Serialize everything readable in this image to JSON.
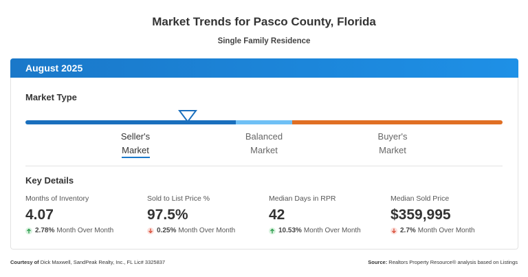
{
  "header": {
    "title": "Market Trends for Pasco County, Florida",
    "subtitle": "Single Family Residence"
  },
  "card": {
    "period": "August 2025",
    "market_type": {
      "heading": "Market Type",
      "options": [
        {
          "line1": "Seller's",
          "line2": "Market"
        },
        {
          "line1": "Balanced",
          "line2": "Market"
        },
        {
          "line1": "Buyer's",
          "line2": "Market"
        }
      ]
    },
    "key_details": {
      "heading": "Key Details",
      "metrics": [
        {
          "label": "Months of Inventory",
          "value": "4.07",
          "change": "2.78%",
          "change_label": "Month Over Month"
        },
        {
          "label": "Sold to List Price %",
          "value": "97.5%",
          "change": "0.25%",
          "change_label": "Month Over Month"
        },
        {
          "label": "Median Days in RPR",
          "value": "42",
          "change": "10.53%",
          "change_label": "Month Over Month"
        },
        {
          "label": "Median Sold Price",
          "value": "$359,995",
          "change": "2.7%",
          "change_label": "Month Over Month"
        }
      ]
    }
  },
  "footer": {
    "courtesy_label": "Courtesy of",
    "courtesy": "Dick Maxwell, SandPeak Realty, Inc., FL Lic# 3325837",
    "source_label": "Source:",
    "source": "Realtors Property Resource® analysis based on Listings"
  }
}
